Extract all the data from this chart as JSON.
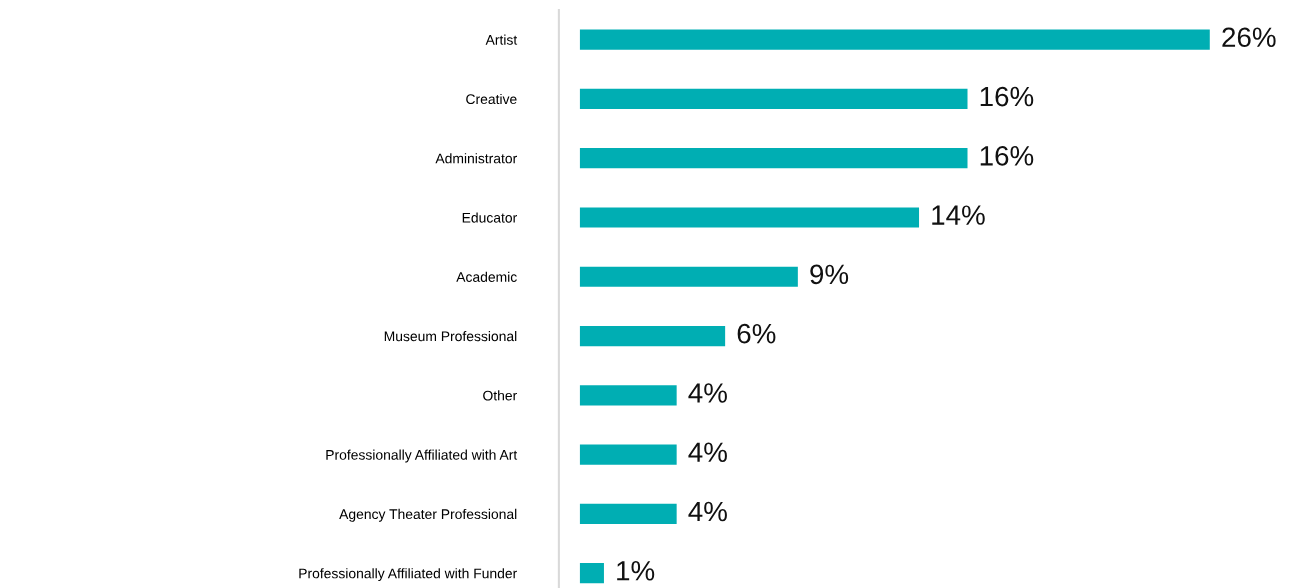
{
  "chart_data": {
    "type": "bar",
    "orientation": "horizontal",
    "categories": [
      "Artist",
      "Creative",
      "Administrator",
      "Educator",
      "Academic",
      "Museum Professional",
      "Other",
      "Professionally Affiliated with Art",
      "Agency Theater Professional",
      "Professionally Affiliated with Funder"
    ],
    "values": [
      26,
      16,
      16,
      14,
      9,
      6,
      4,
      4,
      4,
      1
    ],
    "value_labels": [
      "26%",
      "16%",
      "16%",
      "14%",
      "9%",
      "6%",
      "4%",
      "4%",
      "4%",
      "1%"
    ],
    "color": "#00aeb3",
    "grid": false,
    "legend": false
  }
}
